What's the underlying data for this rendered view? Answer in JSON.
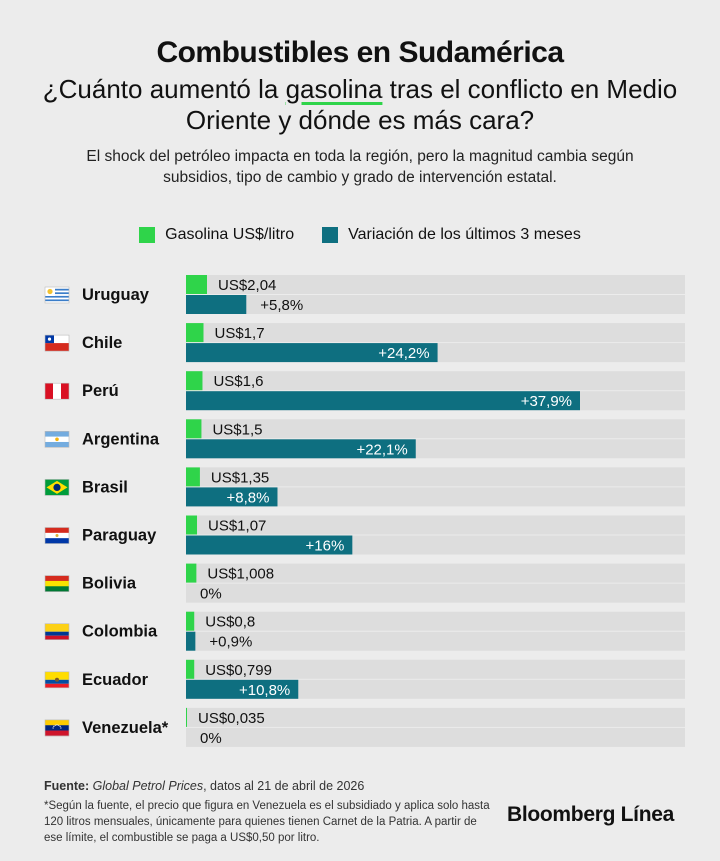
{
  "header": {
    "title": "Combustibles en Sudamérica",
    "subtitle_pre": "¿Cuánto aumentó la ",
    "subtitle_highlight": "gasolina",
    "subtitle_post": " tras el conflicto en Medio Oriente y dónde es más cara?",
    "description": "El shock del petróleo impacta en toda la región, pero la magnitud cambia según subsidios, tipo de cambio y grado de intervención estatal."
  },
  "colors": {
    "price": "#2fd44a",
    "variation": "#0e6f80",
    "track": "#dddddd"
  },
  "chart_data": {
    "type": "bar",
    "categories": [
      "Uruguay",
      "Chile",
      "Perú",
      "Argentina",
      "Brasil",
      "Paraguay",
      "Bolivia",
      "Colombia",
      "Ecuador",
      "Venezuela*"
    ],
    "series": [
      {
        "name": "Gasolina US$/litro",
        "values": [
          2.04,
          1.7,
          1.6,
          1.5,
          1.35,
          1.07,
          1.008,
          0.8,
          0.799,
          0.035
        ],
        "labels": [
          "US$2,04",
          "US$1,7",
          "US$1,6",
          "US$1,5",
          "US$1,35",
          "US$1,07",
          "US$1,008",
          "US$0,8",
          "US$0,799",
          "US$0,035"
        ]
      },
      {
        "name": "Variación de los últimos 3 meses",
        "values": [
          5.8,
          24.2,
          37.9,
          22.1,
          8.8,
          16,
          0,
          0.9,
          10.8,
          0
        ],
        "labels": [
          "+5,8%",
          "+24,2%",
          "+37,9%",
          "+22,1%",
          "+8,8%",
          "+16%",
          "0%",
          "+0,9%",
          "+10,8%",
          "0%"
        ]
      }
    ],
    "flags": [
      "uruguay-flag-icon",
      "chile-flag-icon",
      "peru-flag-icon",
      "argentina-flag-icon",
      "brasil-flag-icon",
      "paraguay-flag-icon",
      "bolivia-flag-icon",
      "colombia-flag-icon",
      "ecuador-flag-icon",
      "venezuela-flag-icon"
    ]
  },
  "footer": {
    "source_label": "Fuente:",
    "source_name": "Global Petrol Prices",
    "source_rest": ", datos al 21 de abril de 2026",
    "note": "*Según la fuente, el precio que figura en Venezuela es el subsidiado y aplica solo hasta 120 litros mensuales, únicamente para quienes tienen Carnet de la Patria. A partir de ese límite, el combustible se paga a US$0,50 por litro.",
    "brand": "Bloomberg Línea"
  }
}
